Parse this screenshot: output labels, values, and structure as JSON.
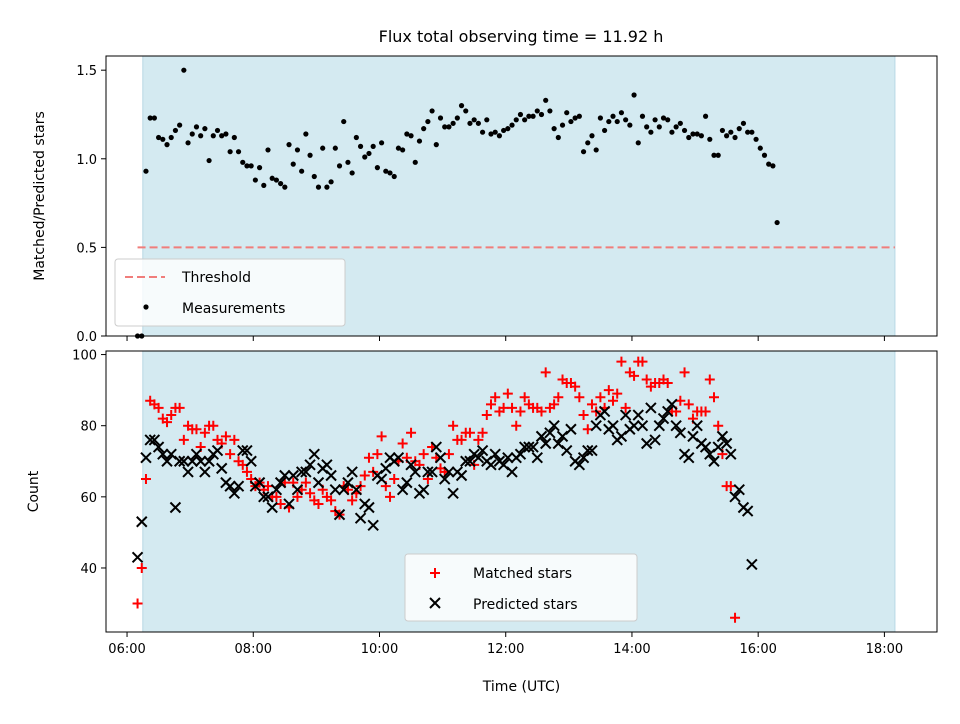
{
  "title": "Flux total observing time = 11.92 h",
  "colors": {
    "observing_band": "#d4eaf1",
    "threshold": "#f07d7b",
    "matched": "#ff0000",
    "predicted": "#000000",
    "measurements": "#000000"
  },
  "chart_data": [
    {
      "type": "scatter",
      "title": "Flux total observing time = 11.92 h",
      "xlabel": "",
      "ylabel": "Matched/Predicted stars",
      "xlim": [
        "05:40",
        "18:50"
      ],
      "ylim": [
        0,
        1.58
      ],
      "yticks": [
        "0.0",
        "0.5",
        "1.0",
        "1.5"
      ],
      "grid": false,
      "legend_location": "lower-left",
      "observing_span": [
        "06:15",
        "18:10"
      ],
      "series": [
        {
          "name": "Threshold",
          "kind": "dashed-line",
          "x": [
            "06:10",
            "18:10"
          ],
          "y": [
            0.5,
            0.5
          ]
        },
        {
          "name": "Measurements",
          "kind": "points",
          "x_start": "06:10",
          "x_step_minutes": 4,
          "y": [
            0.0,
            0.0,
            0.93,
            1.23,
            1.23,
            1.12,
            1.11,
            1.08,
            1.12,
            1.16,
            1.19,
            1.5,
            1.09,
            1.14,
            1.18,
            1.13,
            1.17,
            0.99,
            1.13,
            1.16,
            1.13,
            1.14,
            1.04,
            1.12,
            1.04,
            0.98,
            0.96,
            0.96,
            0.88,
            0.95,
            0.85,
            1.05,
            0.89,
            0.88,
            0.86,
            0.84,
            1.08,
            0.97,
            1.05,
            0.93,
            1.14,
            1.02,
            0.9,
            0.84,
            1.06,
            0.84,
            0.87,
            1.06,
            0.96,
            1.21,
            0.98,
            0.92,
            1.12,
            1.07,
            1.01,
            1.03,
            1.07,
            0.95,
            1.09,
            0.93,
            0.92,
            0.9,
            1.06,
            1.05,
            1.14,
            1.13,
            0.98,
            1.1,
            1.17,
            1.21,
            1.27,
            1.08,
            1.23,
            1.18,
            1.18,
            1.2,
            1.23,
            1.3,
            1.27,
            1.2,
            1.22,
            1.2,
            1.15,
            1.22,
            1.14,
            1.15,
            1.13,
            1.16,
            1.17,
            1.19,
            1.22,
            1.25,
            1.22,
            1.24,
            1.24,
            1.27,
            1.25,
            1.33,
            1.27,
            1.17,
            1.12,
            1.19,
            1.26,
            1.21,
            1.23,
            1.24,
            1.04,
            1.09,
            1.13,
            1.05,
            1.23,
            1.16,
            1.21,
            1.24,
            1.21,
            1.26,
            1.22,
            1.19,
            1.36,
            1.09,
            1.24,
            1.18,
            1.15,
            1.22,
            1.18,
            1.23,
            1.22,
            1.15,
            1.18,
            1.2,
            1.16,
            1.12,
            1.14,
            1.14,
            1.13,
            1.24,
            1.11,
            1.02,
            1.02,
            1.16,
            1.13,
            1.15,
            1.12,
            1.17,
            1.2,
            1.15,
            1.15,
            1.11,
            1.06,
            1.02,
            0.97,
            0.96,
            0.64
          ]
        }
      ]
    },
    {
      "type": "scatter",
      "xlabel": "Time (UTC)",
      "ylabel": "Count",
      "xlim": [
        "05:40",
        "18:50"
      ],
      "ylim": [
        22,
        101
      ],
      "xticks": [
        "06:00",
        "08:00",
        "10:00",
        "12:00",
        "14:00",
        "16:00",
        "18:00"
      ],
      "yticks": [
        "40",
        "60",
        "80",
        "100"
      ],
      "grid": false,
      "legend_location": "lower-center",
      "observing_span": [
        "06:15",
        "18:10"
      ],
      "series": [
        {
          "name": "Matched stars",
          "marker": "plus",
          "x_start": "06:10",
          "x_step_minutes": 4,
          "y": [
            30,
            40,
            65,
            87,
            86,
            85,
            82,
            81,
            83,
            85,
            85,
            76,
            80,
            79,
            79,
            74,
            78,
            80,
            80,
            76,
            75,
            77,
            72,
            76,
            70,
            69,
            67,
            65,
            63,
            64,
            62,
            63,
            60,
            60,
            58,
            64,
            57,
            64,
            60,
            62,
            64,
            61,
            59,
            58,
            62,
            60,
            59,
            56,
            55,
            63,
            62,
            59,
            61,
            63,
            66,
            71,
            67,
            72,
            77,
            63,
            60,
            65,
            70,
            75,
            71,
            78,
            70,
            69,
            72,
            65,
            74,
            71,
            68,
            67,
            72,
            80,
            76,
            76,
            78,
            78,
            69,
            76,
            78,
            83,
            86,
            88,
            84,
            85,
            89,
            85,
            80,
            84,
            88,
            86,
            85,
            85,
            84,
            95,
            85,
            86,
            88,
            93,
            92,
            92,
            91,
            88,
            83,
            79,
            86,
            84,
            88,
            85,
            90,
            87,
            89,
            98,
            85,
            95,
            94,
            98,
            98,
            93,
            91,
            92,
            92,
            93,
            92,
            84,
            84,
            87,
            95,
            86,
            82,
            84,
            84,
            84,
            93,
            88,
            80,
            72,
            63,
            63,
            26
          ]
        },
        {
          "name": "Predicted stars",
          "marker": "x",
          "x_start": "06:10",
          "x_step_minutes": 4,
          "y": [
            43,
            53,
            71,
            76,
            76,
            74,
            72,
            70,
            72,
            57,
            70,
            70,
            67,
            70,
            72,
            70,
            67,
            70,
            72,
            73,
            68,
            64,
            63,
            61,
            63,
            73,
            73,
            70,
            63,
            64,
            60,
            60,
            57,
            62,
            64,
            66,
            58,
            66,
            62,
            67,
            67,
            69,
            72,
            64,
            68,
            69,
            66,
            62,
            55,
            62,
            64,
            67,
            62,
            54,
            58,
            57,
            52,
            66,
            65,
            68,
            71,
            70,
            71,
            62,
            64,
            69,
            67,
            61,
            62,
            67,
            67,
            74,
            71,
            65,
            67,
            61,
            67,
            66,
            70,
            70,
            72,
            71,
            73,
            70,
            69,
            72,
            70,
            69,
            71,
            67,
            71,
            72,
            74,
            74,
            74,
            71,
            77,
            75,
            78,
            80,
            75,
            77,
            73,
            79,
            70,
            69,
            71,
            73,
            73,
            80,
            83,
            84,
            79,
            80,
            76,
            77,
            83,
            79,
            80,
            83,
            80,
            75,
            85,
            76,
            80,
            82,
            84,
            86,
            80,
            78,
            72,
            71,
            77,
            80,
            75,
            74,
            72,
            70,
            74,
            77,
            75,
            72,
            60,
            62,
            57,
            56,
            41
          ]
        }
      ]
    }
  ]
}
